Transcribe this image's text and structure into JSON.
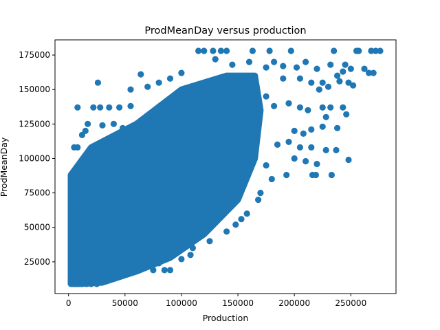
{
  "chart_data": {
    "type": "scatter",
    "title": "ProdMeanDay versus production",
    "xlabel": "Production",
    "ylabel": "ProdMeanDay",
    "xlim": [
      -12000,
      290000
    ],
    "ylim": [
      2000,
      186000
    ],
    "x_ticks": [
      0,
      50000,
      100000,
      150000,
      200000,
      250000
    ],
    "x_tick_labels": [
      "0",
      "50000",
      "100000",
      "150000",
      "200000",
      "250000"
    ],
    "y_ticks": [
      25000,
      50000,
      75000,
      100000,
      125000,
      150000,
      175000
    ],
    "y_tick_labels": [
      "25000",
      "50000",
      "75000",
      "100000",
      "125000",
      "150000",
      "175000"
    ],
    "grid": false,
    "legend": "none",
    "marker_color": "#1f77b4",
    "dense_regions": [
      [
        [
          2000,
          9000
        ],
        [
          2000,
          88000
        ],
        [
          20000,
          108000
        ],
        [
          60000,
          125000
        ],
        [
          100000,
          150000
        ],
        [
          140000,
          160000
        ],
        [
          165000,
          160000
        ],
        [
          170000,
          135000
        ],
        [
          165000,
          100000
        ],
        [
          150000,
          70000
        ],
        [
          120000,
          45000
        ],
        [
          90000,
          28000
        ],
        [
          60000,
          18000
        ],
        [
          30000,
          10000
        ],
        [
          10000,
          9000
        ]
      ]
    ],
    "points": [
      [
        115000,
        178000
      ],
      [
        120000,
        178000
      ],
      [
        128000,
        178000
      ],
      [
        135000,
        178000
      ],
      [
        140000,
        178000
      ],
      [
        163000,
        178000
      ],
      [
        178000,
        178000
      ],
      [
        197000,
        178000
      ],
      [
        235000,
        178000
      ],
      [
        255000,
        178000
      ],
      [
        257000,
        178000
      ],
      [
        268000,
        178000
      ],
      [
        272000,
        178000
      ],
      [
        276000,
        178000
      ],
      [
        130000,
        172000
      ],
      [
        145000,
        168000
      ],
      [
        160000,
        170000
      ],
      [
        175000,
        166000
      ],
      [
        182000,
        170000
      ],
      [
        190000,
        167000
      ],
      [
        202000,
        166000
      ],
      [
        210000,
        170000
      ],
      [
        220000,
        165000
      ],
      [
        232000,
        168000
      ],
      [
        245000,
        168000
      ],
      [
        262000,
        165000
      ],
      [
        266000,
        162000
      ],
      [
        270000,
        162000
      ],
      [
        243000,
        163000
      ],
      [
        250000,
        165000
      ],
      [
        238000,
        160000
      ],
      [
        100000,
        162000
      ],
      [
        90000,
        158000
      ],
      [
        80000,
        155000
      ],
      [
        70000,
        152000
      ],
      [
        64000,
        161000
      ],
      [
        55000,
        150000
      ],
      [
        190000,
        158000
      ],
      [
        205000,
        158000
      ],
      [
        215000,
        155000
      ],
      [
        225000,
        155000
      ],
      [
        230000,
        152000
      ],
      [
        240000,
        156000
      ],
      [
        248000,
        155000
      ],
      [
        252000,
        153000
      ],
      [
        222000,
        150000
      ],
      [
        26000,
        155000
      ],
      [
        8000,
        137000
      ],
      [
        22000,
        137000
      ],
      [
        28000,
        137000
      ],
      [
        36000,
        137000
      ],
      [
        45000,
        137000
      ],
      [
        55000,
        138000
      ],
      [
        30000,
        124000
      ],
      [
        40000,
        125000
      ],
      [
        48000,
        122000
      ],
      [
        17000,
        125000
      ],
      [
        12000,
        117000
      ],
      [
        15000,
        120000
      ],
      [
        5000,
        108000
      ],
      [
        8000,
        108000
      ],
      [
        175000,
        145000
      ],
      [
        182000,
        138000
      ],
      [
        195000,
        140000
      ],
      [
        205000,
        137000
      ],
      [
        212000,
        135000
      ],
      [
        225000,
        137000
      ],
      [
        232000,
        137000
      ],
      [
        243000,
        137000
      ],
      [
        246000,
        132000
      ],
      [
        228000,
        130000
      ],
      [
        200000,
        120000
      ],
      [
        208000,
        118000
      ],
      [
        215000,
        121000
      ],
      [
        225000,
        123000
      ],
      [
        238000,
        122000
      ],
      [
        185000,
        110000
      ],
      [
        195000,
        112000
      ],
      [
        205000,
        108000
      ],
      [
        215000,
        108000
      ],
      [
        228000,
        106000
      ],
      [
        237000,
        106000
      ],
      [
        200000,
        100000
      ],
      [
        210000,
        98000
      ],
      [
        220000,
        96000
      ],
      [
        248000,
        99000
      ],
      [
        193000,
        88000
      ],
      [
        216000,
        88000
      ],
      [
        219000,
        88000
      ],
      [
        233000,
        88000
      ],
      [
        175000,
        95000
      ],
      [
        180000,
        85000
      ],
      [
        170000,
        75000
      ],
      [
        168000,
        70000
      ],
      [
        158000,
        60000
      ],
      [
        153000,
        56000
      ],
      [
        148000,
        52000
      ],
      [
        140000,
        47000
      ],
      [
        125000,
        40000
      ],
      [
        110000,
        35000
      ],
      [
        108000,
        30000
      ],
      [
        100000,
        27000
      ],
      [
        80000,
        24000
      ],
      [
        75000,
        19000
      ],
      [
        85000,
        19000
      ],
      [
        90000,
        19000
      ],
      [
        62000,
        20000
      ],
      [
        50000,
        16000
      ],
      [
        45000,
        14000
      ],
      [
        40000,
        14000
      ],
      [
        35000,
        15000
      ],
      [
        32000,
        11000
      ],
      [
        25000,
        9000
      ],
      [
        14000,
        55000
      ],
      [
        20000,
        60000
      ],
      [
        3000,
        30000
      ],
      [
        4000,
        45000
      ],
      [
        5000,
        60000
      ],
      [
        6000,
        70000
      ],
      [
        3500,
        20000
      ],
      [
        4000,
        15000
      ],
      [
        5000,
        12000
      ],
      [
        6000,
        9000
      ],
      [
        8000,
        9000
      ],
      [
        12000,
        9000
      ],
      [
        16000,
        9000
      ],
      [
        20000,
        9000
      ]
    ]
  }
}
